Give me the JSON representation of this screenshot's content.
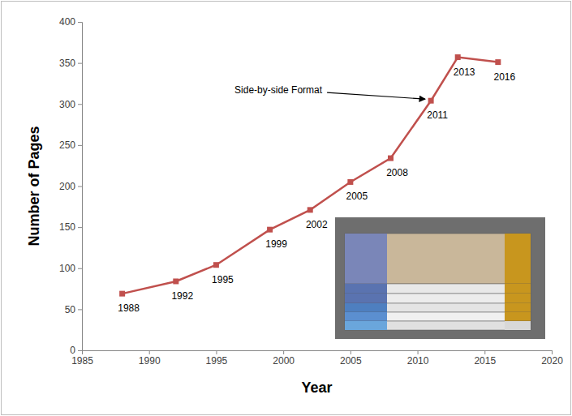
{
  "chart_data": {
    "type": "line",
    "x": [
      1988,
      1992,
      1995,
      1999,
      2002,
      2005,
      2008,
      2011,
      2013,
      2016
    ],
    "values": [
      69,
      84,
      104,
      147,
      171,
      205,
      234,
      304,
      357,
      351
    ],
    "point_labels": [
      "1988",
      "1992",
      "1995",
      "1999",
      "2002",
      "2005",
      "2008",
      "2011",
      "2013",
      "2016"
    ],
    "color": "#c0504d",
    "marker": "square",
    "xlabel": "Year",
    "ylabel": "Number of Pages",
    "xlim": [
      1985,
      2020
    ],
    "xticks": [
      1985,
      1990,
      1995,
      2000,
      2005,
      2010,
      2015,
      2020
    ],
    "ylim": [
      0,
      400
    ],
    "yticks": [
      0,
      50,
      100,
      150,
      200,
      250,
      300,
      350,
      400
    ],
    "grid": false,
    "annotations": [
      {
        "text": "Side-by-side Format",
        "x": 2011,
        "y": 304
      }
    ]
  }
}
